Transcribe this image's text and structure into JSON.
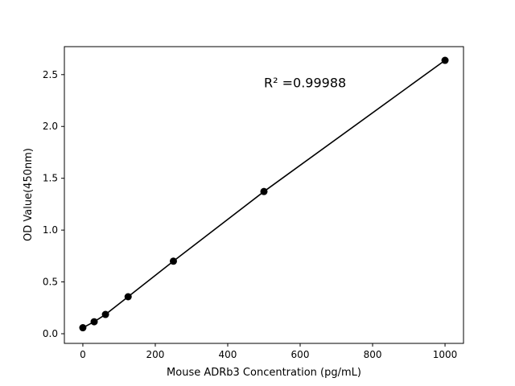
{
  "chart_data": {
    "type": "scatter",
    "title": "",
    "xlabel": "Mouse ADRb3 Concentration (pg/mL)",
    "ylabel": "OD Value(450nm)",
    "xlim": [
      -51,
      1051
    ],
    "ylim": [
      -0.093,
      2.77
    ],
    "xticks": [
      0,
      200,
      400,
      600,
      800,
      1000
    ],
    "yticks": [
      0.0,
      0.5,
      1.0,
      1.5,
      2.0,
      2.5
    ],
    "xtick_labels": [
      "0",
      "200",
      "400",
      "600",
      "800",
      "1000"
    ],
    "ytick_labels": [
      "0.0",
      "0.5",
      "1.0",
      "1.5",
      "2.0",
      "2.5"
    ],
    "grid": false,
    "points": [
      {
        "x": 0,
        "y": 0.058
      },
      {
        "x": 31.25,
        "y": 0.116
      },
      {
        "x": 62.5,
        "y": 0.186
      },
      {
        "x": 125,
        "y": 0.357
      },
      {
        "x": 250,
        "y": 0.7
      },
      {
        "x": 500,
        "y": 1.372
      },
      {
        "x": 1000,
        "y": 2.638
      }
    ],
    "annotation": {
      "text": "R² =0.99988",
      "x": 500,
      "y": 2.38
    },
    "color": "#000000"
  }
}
